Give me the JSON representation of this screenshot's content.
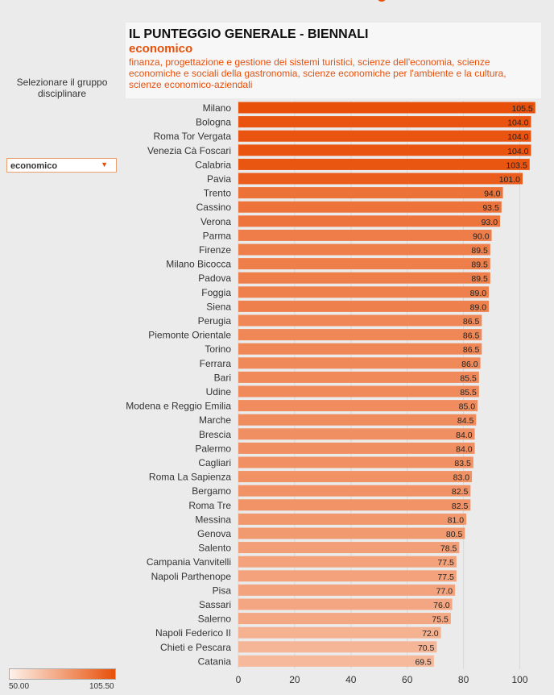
{
  "header": {
    "title": "IL PUNTEGGIO GENERALE - BIENNALI",
    "subtitle": "economico",
    "description": "finanza, progettazione e gestione dei sistemi turistici, scienze dell'economia, scienze economiche e sociali della gastronomia, scienze economiche per l'ambiente e la cultura, scienze economico-aziendali"
  },
  "sidebar": {
    "label": "Selezionare il gruppo disciplinare",
    "dropdown_value": "economico"
  },
  "legend": {
    "min": "50.00",
    "max": "105.50",
    "color_low": "#fdf2ea",
    "color_high": "#e8500a"
  },
  "chart_data": {
    "type": "bar",
    "orientation": "horizontal",
    "title": "IL PUNTEGGIO GENERALE - BIENNALI",
    "categories": [
      "Milano",
      "Bologna",
      "Roma Tor Vergata",
      "Venezia Cà Foscari",
      "Calabria",
      "Pavia",
      "Trento",
      "Cassino",
      "Verona",
      "Parma",
      "Firenze",
      "Milano Bicocca",
      "Padova",
      "Foggia",
      "Siena",
      "Perugia",
      "Piemonte Orientale",
      "Torino",
      "Ferrara",
      "Bari",
      "Udine",
      "Modena e Reggio Emilia",
      "Marche",
      "Brescia",
      "Palermo",
      "Cagliari",
      "Roma La Sapienza",
      "Bergamo",
      "Roma Tre",
      "Messina",
      "Genova",
      "Salento",
      "Campania Vanvitelli",
      "Napoli Parthenope",
      "Pisa",
      "Sassari",
      "Salerno",
      "Napoli Federico II",
      "Chieti e Pescara",
      "Catania"
    ],
    "values": [
      105.5,
      104.0,
      104.0,
      104.0,
      103.5,
      101.0,
      94.0,
      93.5,
      93.0,
      90.0,
      89.5,
      89.5,
      89.5,
      89.0,
      89.0,
      86.5,
      86.5,
      86.5,
      86.0,
      85.5,
      85.5,
      85.0,
      84.5,
      84.0,
      84.0,
      83.5,
      83.0,
      82.5,
      82.5,
      81.0,
      80.5,
      78.5,
      77.5,
      77.5,
      77.0,
      76.0,
      75.5,
      72.0,
      70.5,
      69.5
    ],
    "xlim": [
      0,
      110
    ],
    "xticks": [
      0,
      20,
      40,
      60,
      80,
      100
    ],
    "color_range": [
      50.0,
      105.5
    ],
    "grid": true
  }
}
